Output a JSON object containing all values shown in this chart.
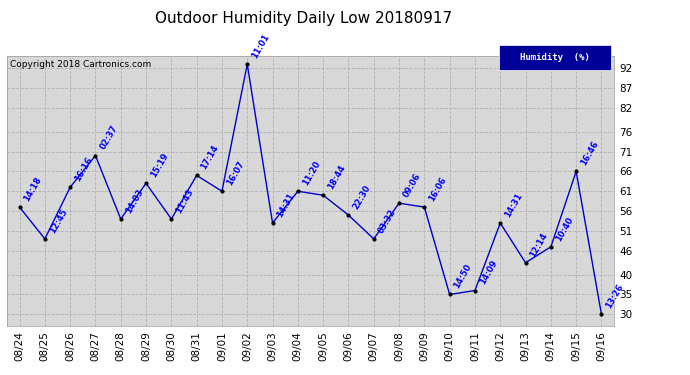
{
  "title": "Outdoor Humidity Daily Low 20180917",
  "copyright": "Copyright 2018 Cartronics.com",
  "legend_label": "Humidity  (%)",
  "line_color": "#0000cc",
  "bg_color": "#ffffff",
  "grid_color": "#b0b0b0",
  "plot_bg_color": "#d8d8d8",
  "yticks": [
    30,
    35,
    40,
    46,
    51,
    56,
    61,
    66,
    71,
    76,
    82,
    87,
    92
  ],
  "ylim": [
    27,
    95
  ],
  "dates": [
    "08/24",
    "08/25",
    "08/26",
    "08/27",
    "08/28",
    "08/29",
    "08/30",
    "08/31",
    "09/01",
    "09/02",
    "09/03",
    "09/04",
    "09/05",
    "09/06",
    "09/07",
    "09/08",
    "09/09",
    "09/10",
    "09/11",
    "09/12",
    "09/13",
    "09/14",
    "09/15",
    "09/16"
  ],
  "values": [
    57,
    49,
    62,
    70,
    54,
    63,
    54,
    65,
    61,
    93,
    53,
    61,
    60,
    55,
    49,
    58,
    57,
    35,
    36,
    53,
    43,
    47,
    66,
    30
  ],
  "time_labels": [
    "14:18",
    "12:45",
    "16:16",
    "02:37",
    "14:03",
    "15:19",
    "11:43",
    "17:14",
    "16:07",
    "11:01",
    "14:31",
    "11:20",
    "18:44",
    "22:30",
    "03:32",
    "09:06",
    "16:06",
    "14:50",
    "14:09",
    "14:31",
    "12:14",
    "10:40",
    "16:46",
    "13:26"
  ],
  "label_color": "#0000ff",
  "title_color": "#000000",
  "title_fontsize": 11,
  "copyright_fontsize": 6.5,
  "tick_fontsize": 7.5,
  "label_fontsize": 6
}
